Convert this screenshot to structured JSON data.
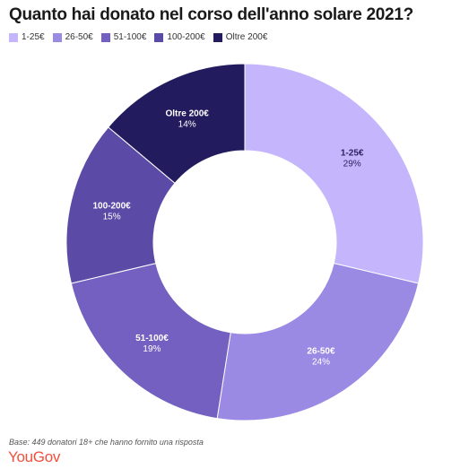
{
  "chart_data": {
    "type": "pie",
    "title": "Quanto hai donato nel corso dell'anno solare 2021?",
    "categories": [
      "1-25€",
      "26-50€",
      "51-100€",
      "100-200€",
      "Oltre 200€"
    ],
    "values": [
      29,
      24,
      19,
      15,
      14
    ],
    "value_labels": [
      "29%",
      "24%",
      "19%",
      "15%",
      "14%"
    ],
    "colors": [
      "#c4b5fd",
      "#9a8ae4",
      "#7360c0",
      "#5b4aa6",
      "#221c5e"
    ],
    "label_colors": [
      "#2d2360",
      "#ffffff",
      "#ffffff",
      "#ffffff",
      "#ffffff"
    ],
    "donut": true,
    "legend_position": "top-left"
  },
  "footnote": "Base: 449 donatori 18+ che hanno fornito una risposta",
  "brand": "YouGov"
}
